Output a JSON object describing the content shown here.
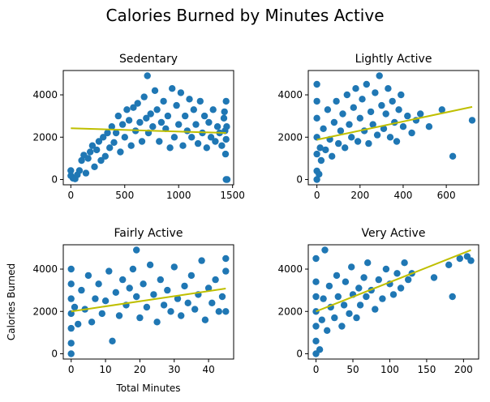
{
  "figure": {
    "title": "Calories Burned by Minutes Active"
  },
  "colors": {
    "points": "#1f77b4",
    "trend": "#bfbf00",
    "axis": "#000000"
  },
  "chart_data": [
    {
      "type": "scatter",
      "title": "Sedentary",
      "xlabel": "",
      "ylabel": "",
      "xlim": [
        -70,
        1510
      ],
      "ylim": [
        -250,
        5150
      ],
      "xticks": [
        0,
        500,
        1000,
        1500
      ],
      "yticks": [
        0,
        2000,
        4000
      ],
      "trend_line": {
        "x": [
          0,
          1440
        ],
        "y": [
          2420,
          2200
        ]
      },
      "grid": false,
      "points": [
        [
          0,
          180
        ],
        [
          0,
          420
        ],
        [
          20,
          60
        ],
        [
          40,
          30
        ],
        [
          60,
          220
        ],
        [
          80,
          420
        ],
        [
          100,
          900
        ],
        [
          120,
          1150
        ],
        [
          140,
          300
        ],
        [
          160,
          1000
        ],
        [
          180,
          1300
        ],
        [
          200,
          1600
        ],
        [
          220,
          600
        ],
        [
          240,
          1400
        ],
        [
          260,
          1800
        ],
        [
          280,
          900
        ],
        [
          300,
          2000
        ],
        [
          320,
          1100
        ],
        [
          340,
          2200
        ],
        [
          360,
          1500
        ],
        [
          380,
          2500
        ],
        [
          400,
          1750
        ],
        [
          420,
          2200
        ],
        [
          440,
          3000
        ],
        [
          460,
          1300
        ],
        [
          480,
          2600
        ],
        [
          500,
          2000
        ],
        [
          520,
          3300
        ],
        [
          540,
          2800
        ],
        [
          560,
          1600
        ],
        [
          580,
          3400
        ],
        [
          600,
          2300
        ],
        [
          620,
          3600
        ],
        [
          640,
          2700
        ],
        [
          660,
          1800
        ],
        [
          680,
          3900
        ],
        [
          700,
          2900
        ],
        [
          710,
          4900
        ],
        [
          720,
          2200
        ],
        [
          740,
          3100
        ],
        [
          760,
          2500
        ],
        [
          780,
          4200
        ],
        [
          800,
          3300
        ],
        [
          820,
          1800
        ],
        [
          840,
          2700
        ],
        [
          860,
          3700
        ],
        [
          880,
          2400
        ],
        [
          900,
          3000
        ],
        [
          920,
          1500
        ],
        [
          940,
          4300
        ],
        [
          960,
          2000
        ],
        [
          980,
          3500
        ],
        [
          1000,
          2600
        ],
        [
          1020,
          4100
        ],
        [
          1040,
          1600
        ],
        [
          1060,
          3000
        ],
        [
          1080,
          2300
        ],
        [
          1100,
          3800
        ],
        [
          1120,
          2000
        ],
        [
          1140,
          3300
        ],
        [
          1160,
          2600
        ],
        [
          1180,
          1700
        ],
        [
          1200,
          3700
        ],
        [
          1220,
          2200
        ],
        [
          1240,
          3000
        ],
        [
          1260,
          1500
        ],
        [
          1280,
          2700
        ],
        [
          1300,
          2000
        ],
        [
          1320,
          3300
        ],
        [
          1340,
          1800
        ],
        [
          1360,
          2500
        ],
        [
          1380,
          2200
        ],
        [
          1400,
          1600
        ],
        [
          1420,
          2900
        ],
        [
          1430,
          2300
        ],
        [
          1440,
          1900
        ],
        [
          1440,
          3700
        ],
        [
          1440,
          0
        ],
        [
          1450,
          0
        ],
        [
          1445,
          2500
        ],
        [
          1435,
          1200
        ],
        [
          1425,
          3200
        ]
      ]
    },
    {
      "type": "scatter",
      "title": "Lightly Active",
      "xlabel": "",
      "ylabel": "",
      "xlim": [
        -40,
        750
      ],
      "ylim": [
        -250,
        5150
      ],
      "xticks": [
        0,
        200,
        400,
        600
      ],
      "yticks": [
        0,
        2000,
        4000
      ],
      "trend_line": {
        "x": [
          0,
          720
        ],
        "y": [
          1880,
          3430
        ]
      },
      "grid": false,
      "points": [
        [
          0,
          0
        ],
        [
          0,
          400
        ],
        [
          0,
          1200
        ],
        [
          0,
          2000
        ],
        [
          0,
          2900
        ],
        [
          0,
          3700
        ],
        [
          0,
          4500
        ],
        [
          10,
          250
        ],
        [
          15,
          1500
        ],
        [
          20,
          900
        ],
        [
          30,
          2400
        ],
        [
          40,
          1400
        ],
        [
          50,
          3300
        ],
        [
          60,
          1900
        ],
        [
          70,
          1100
        ],
        [
          80,
          2700
        ],
        [
          90,
          3700
        ],
        [
          100,
          1700
        ],
        [
          110,
          2300
        ],
        [
          120,
          3100
        ],
        [
          130,
          1500
        ],
        [
          140,
          4000
        ],
        [
          150,
          2600
        ],
        [
          160,
          2000
        ],
        [
          170,
          3400
        ],
        [
          180,
          4300
        ],
        [
          190,
          1800
        ],
        [
          200,
          2900
        ],
        [
          210,
          3800
        ],
        [
          220,
          2300
        ],
        [
          230,
          4500
        ],
        [
          240,
          1700
        ],
        [
          250,
          3200
        ],
        [
          260,
          2600
        ],
        [
          270,
          4100
        ],
        [
          280,
          2100
        ],
        [
          290,
          4900
        ],
        [
          300,
          3500
        ],
        [
          310,
          2400
        ],
        [
          320,
          3100
        ],
        [
          330,
          4300
        ],
        [
          340,
          2000
        ],
        [
          350,
          3700
        ],
        [
          360,
          2700
        ],
        [
          370,
          1800
        ],
        [
          380,
          3300
        ],
        [
          390,
          4000
        ],
        [
          400,
          2500
        ],
        [
          420,
          3000
        ],
        [
          440,
          2200
        ],
        [
          460,
          2800
        ],
        [
          480,
          3100
        ],
        [
          520,
          2500
        ],
        [
          580,
          3300
        ],
        [
          630,
          1100
        ],
        [
          720,
          2800
        ]
      ]
    },
    {
      "type": "scatter",
      "title": "Fairly Active",
      "xlabel": "Total Minutes",
      "ylabel": "Calories Burned",
      "xlim": [
        -2.3,
        47.3
      ],
      "ylim": [
        -250,
        5150
      ],
      "xticks": [
        0,
        10,
        20,
        30,
        40
      ],
      "yticks": [
        0,
        2000,
        4000
      ],
      "trend_line": {
        "x": [
          0,
          45
        ],
        "y": [
          2000,
          3080
        ]
      },
      "grid": false,
      "points": [
        [
          0,
          0
        ],
        [
          0,
          500
        ],
        [
          0,
          1200
        ],
        [
          0,
          1900
        ],
        [
          0,
          2600
        ],
        [
          0,
          3300
        ],
        [
          0,
          4000
        ],
        [
          1,
          2200
        ],
        [
          2,
          1400
        ],
        [
          3,
          3000
        ],
        [
          4,
          2100
        ],
        [
          5,
          3700
        ],
        [
          6,
          1500
        ],
        [
          7,
          2600
        ],
        [
          8,
          3300
        ],
        [
          9,
          1900
        ],
        [
          10,
          2500
        ],
        [
          11,
          3900
        ],
        [
          12,
          600
        ],
        [
          13,
          2900
        ],
        [
          14,
          1800
        ],
        [
          15,
          3500
        ],
        [
          16,
          2300
        ],
        [
          17,
          3100
        ],
        [
          18,
          4000
        ],
        [
          19,
          2700
        ],
        [
          19,
          4900
        ],
        [
          20,
          1700
        ],
        [
          21,
          3300
        ],
        [
          22,
          2200
        ],
        [
          23,
          4200
        ],
        [
          24,
          2800
        ],
        [
          25,
          1500
        ],
        [
          26,
          3500
        ],
        [
          27,
          2300
        ],
        [
          28,
          3000
        ],
        [
          29,
          2000
        ],
        [
          30,
          4100
        ],
        [
          31,
          2600
        ],
        [
          32,
          1800
        ],
        [
          33,
          3200
        ],
        [
          34,
          2400
        ],
        [
          35,
          3700
        ],
        [
          36,
          2100
        ],
        [
          37,
          2800
        ],
        [
          38,
          4400
        ],
        [
          39,
          1600
        ],
        [
          40,
          3100
        ],
        [
          41,
          2400
        ],
        [
          42,
          3500
        ],
        [
          43,
          2000
        ],
        [
          44,
          2700
        ],
        [
          45,
          4500
        ],
        [
          45,
          2000
        ],
        [
          45,
          3900
        ]
      ]
    },
    {
      "type": "scatter",
      "title": "Very Active",
      "xlabel": "",
      "ylabel": "",
      "xlim": [
        -10.5,
        220.5
      ],
      "ylim": [
        -250,
        5150
      ],
      "xticks": [
        0,
        50,
        100,
        150,
        200
      ],
      "yticks": [
        0,
        2000,
        4000
      ],
      "trend_line": {
        "x": [
          0,
          210
        ],
        "y": [
          2000,
          4900
        ]
      },
      "grid": false,
      "points": [
        [
          0,
          0
        ],
        [
          0,
          600
        ],
        [
          0,
          1300
        ],
        [
          0,
          2000
        ],
        [
          0,
          2700
        ],
        [
          0,
          3400
        ],
        [
          0,
          4500
        ],
        [
          5,
          200
        ],
        [
          8,
          1600
        ],
        [
          10,
          2600
        ],
        [
          12,
          4900
        ],
        [
          15,
          1100
        ],
        [
          18,
          3200
        ],
        [
          20,
          2200
        ],
        [
          25,
          1700
        ],
        [
          28,
          3700
        ],
        [
          30,
          2700
        ],
        [
          35,
          1300
        ],
        [
          38,
          2300
        ],
        [
          40,
          3400
        ],
        [
          45,
          1900
        ],
        [
          48,
          4100
        ],
        [
          50,
          2800
        ],
        [
          55,
          1700
        ],
        [
          58,
          3100
        ],
        [
          60,
          2300
        ],
        [
          65,
          3600
        ],
        [
          68,
          2700
        ],
        [
          70,
          4300
        ],
        [
          75,
          3000
        ],
        [
          80,
          2100
        ],
        [
          85,
          3500
        ],
        [
          90,
          2600
        ],
        [
          95,
          4000
        ],
        [
          100,
          3300
        ],
        [
          105,
          2800
        ],
        [
          110,
          3800
        ],
        [
          115,
          3100
        ],
        [
          120,
          4300
        ],
        [
          125,
          3500
        ],
        [
          130,
          3800
        ],
        [
          160,
          3600
        ],
        [
          180,
          4200
        ],
        [
          185,
          2700
        ],
        [
          195,
          4500
        ],
        [
          205,
          4600
        ],
        [
          210,
          4400
        ]
      ]
    }
  ]
}
